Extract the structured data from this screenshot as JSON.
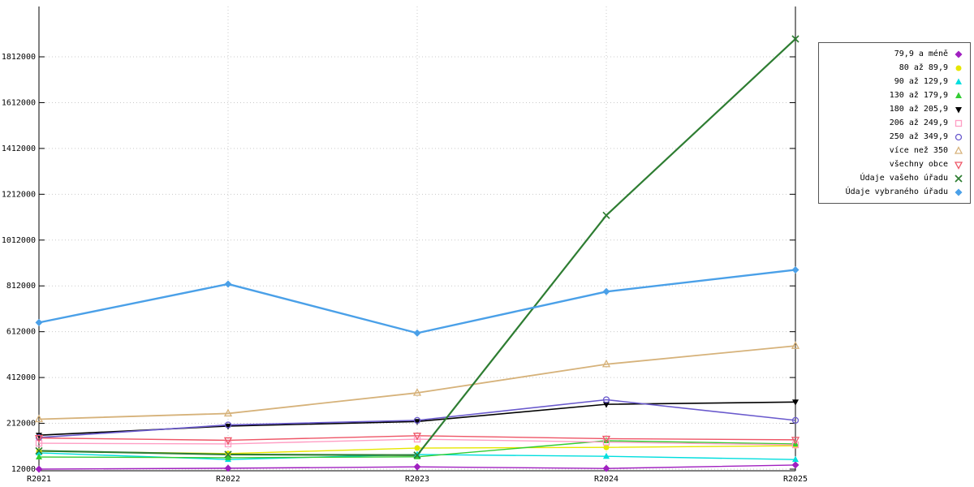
{
  "chart_data": {
    "type": "line",
    "title": "",
    "xlabel": "",
    "ylabel": "",
    "x_labels": [
      "R2021",
      "R2022",
      "R2023",
      "R2024",
      "R2025"
    ],
    "y_ticks": [
      12000,
      212000,
      412000,
      612000,
      812000,
      1012000,
      1212000,
      1412000,
      1612000,
      1812000
    ],
    "y_range": [
      12000,
      1812000
    ],
    "grid": true,
    "legend_position": "right",
    "series": [
      {
        "name": "79,9 a méně",
        "color": "#a020c0",
        "marker": "diamond",
        "line_width": 1.4,
        "values": [
          12000,
          16000,
          22000,
          15000,
          30000
        ]
      },
      {
        "name": "80 až 89,9",
        "color": "#e6e600",
        "marker": "circle",
        "line_width": 1.4,
        "values": [
          90000,
          80000,
          104000,
          107000,
          114000
        ]
      },
      {
        "name": "90 až 129,9",
        "color": "#00dede",
        "marker": "triangle",
        "line_width": 1.4,
        "values": [
          83000,
          54000,
          76000,
          68000,
          54000
        ]
      },
      {
        "name": "130 až 179,9",
        "color": "#33cc33",
        "marker": "triangle",
        "line_width": 1.4,
        "values": [
          65000,
          62000,
          66000,
          136000,
          122000
        ]
      },
      {
        "name": "180 až 205,9",
        "color": "#000000",
        "marker": "triangle-down",
        "line_width": 1.6,
        "values": [
          160000,
          200000,
          220000,
          295000,
          305000
        ]
      },
      {
        "name": "206 až 249,9",
        "color": "#ff9ec4",
        "marker": "square-open",
        "line_width": 1.4,
        "values": [
          125000,
          122000,
          143000,
          130000,
          118000
        ]
      },
      {
        "name": "250 až 349,9",
        "color": "#6a5acd",
        "marker": "circle-open",
        "line_width": 1.6,
        "values": [
          150000,
          205000,
          225000,
          315000,
          225000
        ]
      },
      {
        "name": "více než 350",
        "color": "#d6b27a",
        "marker": "triangle-open",
        "line_width": 1.8,
        "values": [
          230000,
          255000,
          345000,
          470000,
          550000
        ]
      },
      {
        "name": "všechny obce",
        "color": "#ee5566",
        "marker": "triangle-down-open",
        "line_width": 1.4,
        "values": [
          148000,
          138000,
          158000,
          145000,
          140000
        ]
      },
      {
        "name": "Údaje vašeho úřadu",
        "color": "#2e7d32",
        "marker": "x",
        "line_width": 2.2,
        "values": [
          92000,
          76000,
          73000,
          1120000,
          1890000
        ]
      },
      {
        "name": "Údaje vybraného úřadu",
        "color": "#4aa0e8",
        "marker": "diamond",
        "line_width": 2.4,
        "values": [
          652000,
          820000,
          606000,
          787000,
          882000
        ]
      }
    ]
  }
}
